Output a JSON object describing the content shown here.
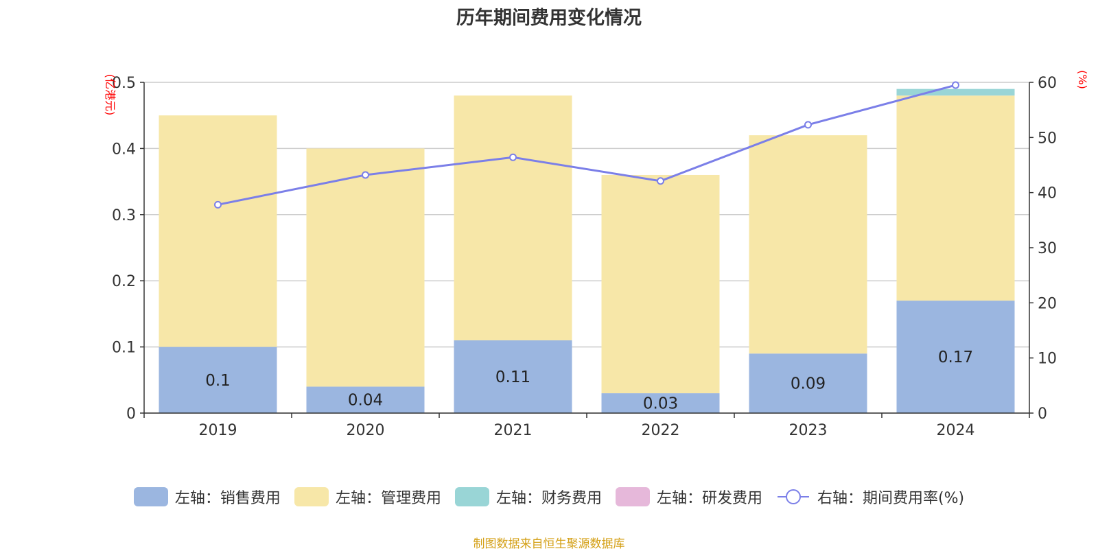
{
  "chart_data": {
    "type": "bar",
    "title": "历年期间费用变化情况",
    "categories": [
      "2019",
      "2020",
      "2021",
      "2022",
      "2023",
      "2024"
    ],
    "series": [
      {
        "name": "左轴：销售费用",
        "axis": "left",
        "color": "#9bb6e0",
        "values": [
          0.1,
          0.04,
          0.11,
          0.03,
          0.09,
          0.17
        ]
      },
      {
        "name": "左轴：管理费用",
        "axis": "left",
        "color": "#f7e7a8",
        "values": [
          0.35,
          0.36,
          0.37,
          0.33,
          0.33,
          0.31
        ]
      },
      {
        "name": "左轴：财务费用",
        "axis": "left",
        "color": "#99d5d6",
        "values": [
          0,
          0,
          0,
          0,
          0,
          0.01
        ]
      },
      {
        "name": "左轴：研发费用",
        "axis": "left",
        "color": "#e6b8da",
        "values": [
          0,
          0,
          0,
          0,
          0,
          0
        ]
      },
      {
        "name": "右轴：期间费用率(%)",
        "axis": "right",
        "type": "line",
        "color": "#7b7fe8",
        "values": [
          37.8,
          43.2,
          46.4,
          42.1,
          52.3,
          59.5
        ]
      }
    ],
    "data_labels": [
      "0.1",
      "0.04",
      "0.11",
      "0.03",
      "0.09",
      "0.17"
    ],
    "left_axis": {
      "unit": "(亿港元)",
      "ylim": [
        0,
        0.5
      ],
      "ticks": [
        "0",
        "0.1",
        "0.2",
        "0.3",
        "0.4",
        "0.5"
      ]
    },
    "right_axis": {
      "unit": "(%)",
      "ylim": [
        0,
        60
      ],
      "ticks": [
        "0",
        "10",
        "20",
        "30",
        "40",
        "50",
        "60"
      ]
    },
    "grid": true,
    "legend_position": "bottom"
  },
  "source": "制图数据来自恒生聚源数据库"
}
